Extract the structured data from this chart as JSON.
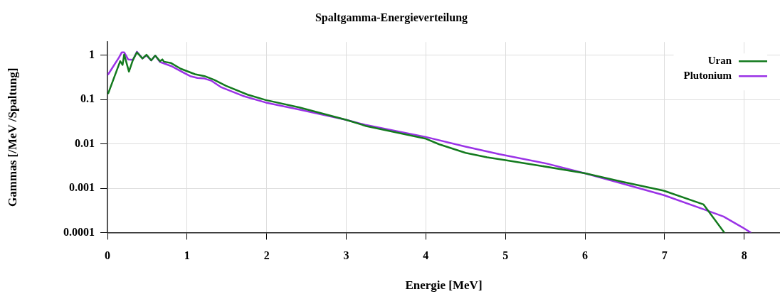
{
  "chart_data": {
    "type": "line",
    "title": "Spaltgamma-Energieverteilung",
    "xlabel": "Energie [MeV]",
    "ylabel": "Gammas [/MeV /Spaltung]",
    "series": [
      {
        "name": "Uran",
        "color": "#137a1e",
        "x": [
          0.01,
          0.16,
          0.19,
          0.21,
          0.27,
          0.32,
          0.37,
          0.44,
          0.49,
          0.55,
          0.6,
          0.66,
          0.69,
          0.71,
          0.8,
          0.92,
          1.1,
          1.22,
          1.34,
          1.49,
          1.76,
          1.99,
          2.41,
          3.0,
          3.25,
          3.99,
          4.17,
          4.5,
          4.77,
          5.0,
          5.4,
          5.99,
          6.47,
          6.99,
          7.49,
          7.75
        ],
        "values": [
          0.14,
          0.74,
          0.61,
          1.05,
          0.43,
          0.79,
          1.17,
          0.85,
          1.03,
          0.77,
          0.99,
          0.74,
          0.81,
          0.72,
          0.67,
          0.5,
          0.375,
          0.34,
          0.28,
          0.205,
          0.13,
          0.098,
          0.067,
          0.035,
          0.0254,
          0.0133,
          0.0098,
          0.0063,
          0.005,
          0.0043,
          0.0033,
          0.0022,
          0.0014,
          0.00088,
          0.00043,
          0.0001
        ]
      },
      {
        "name": "Plutonium",
        "color": "#9a32e6",
        "x": [
          0.01,
          0.145,
          0.18,
          0.21,
          0.26,
          0.32,
          0.37,
          0.44,
          0.49,
          0.55,
          0.6,
          0.66,
          0.8,
          0.92,
          1.04,
          1.13,
          1.22,
          1.31,
          1.43,
          1.7,
          1.99,
          2.41,
          3.0,
          3.25,
          3.99,
          4.5,
          4.92,
          5.52,
          5.99,
          6.47,
          6.99,
          7.52,
          7.74,
          7.98,
          8.08
        ],
        "values": [
          0.375,
          0.9,
          1.17,
          1.17,
          0.81,
          0.79,
          1.21,
          0.85,
          1.0,
          0.77,
          0.99,
          0.71,
          0.575,
          0.44,
          0.34,
          0.31,
          0.3,
          0.265,
          0.19,
          0.122,
          0.086,
          0.06,
          0.035,
          0.0267,
          0.0145,
          0.0087,
          0.0059,
          0.0036,
          0.0022,
          0.00127,
          0.0007,
          0.00032,
          0.00023,
          0.00013,
          0.0001
        ]
      }
    ],
    "xlim": [
      0,
      8.45
    ],
    "xticks": [
      0,
      1,
      2,
      3,
      4,
      5,
      6,
      7,
      8
    ],
    "ylim": [
      0.0001,
      2
    ],
    "yticks": [
      0.0001,
      0.001,
      0.01,
      0.1,
      1
    ],
    "log": true,
    "grid": true,
    "legend": "top right",
    "marker": "none",
    "line_style": "solid"
  }
}
